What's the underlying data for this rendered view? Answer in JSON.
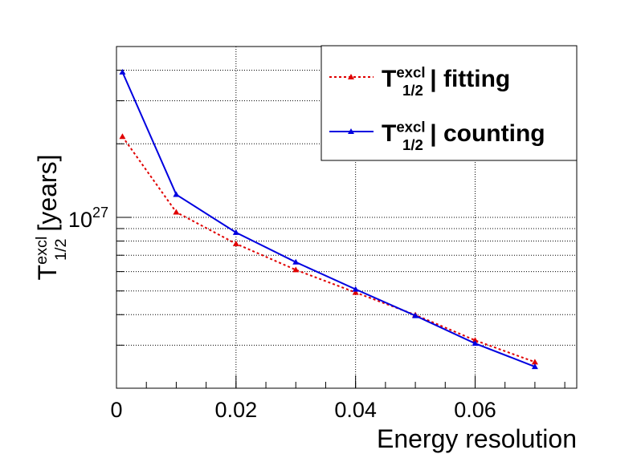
{
  "chart_data": {
    "type": "line",
    "x_label": "Energy resolution",
    "y_label": {
      "base": "T",
      "sup": "excl",
      "sub": "1/2",
      "rest": " [years]"
    },
    "log_y": true,
    "grid": true,
    "legend": "upper right",
    "xlim": [
      0,
      0.077
    ],
    "xticks": [
      0,
      0.02,
      0.04,
      0.06
    ],
    "ylim": [
      2e+26,
      5e+27
    ],
    "yticks": [
      {
        "value": 1e+27,
        "label": "10^27"
      }
    ],
    "yminor_ticks": [
      2e+26,
      3e+26,
      4e+26,
      5e+26,
      6e+26,
      7e+26,
      8e+26,
      9e+26,
      2e+27,
      3e+27,
      4e+27,
      5e+27
    ],
    "x": [
      0.001,
      0.01,
      0.02,
      0.03,
      0.04,
      0.05,
      0.06,
      0.07
    ],
    "series": [
      {
        "name": {
          "base": "T",
          "sup": "excl",
          "sub": "1/2",
          "rest": " | fitting"
        },
        "color": "#e00000",
        "dash": "dotted",
        "values": [
          2.14e+27,
          1.05e+27,
          7.8e+26,
          6.1e+26,
          4.93e+26,
          3.99e+26,
          3.14e+26,
          2.56e+26
        ]
      },
      {
        "name": {
          "base": "T",
          "sup": "excl",
          "sub": "1/2",
          "rest": " | counting"
        },
        "color": "#0000e0",
        "dash": "solid",
        "values": [
          3.93e+27,
          1.24e+27,
          8.67e+26,
          6.56e+26,
          5.08e+26,
          3.96e+26,
          3.05e+26,
          2.45e+26
        ]
      }
    ]
  }
}
